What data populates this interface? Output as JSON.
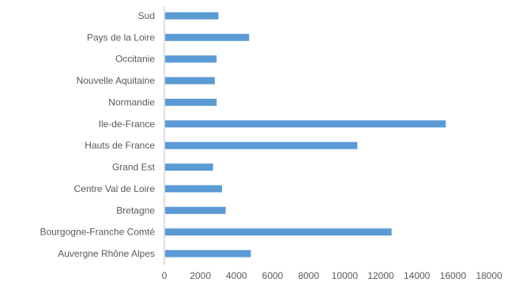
{
  "chart_data": {
    "type": "bar",
    "orientation": "horizontal",
    "title": "",
    "xlabel": "",
    "ylabel": "",
    "categories": [
      "Auvergne Rhône Alpes",
      "Bourgogne-Franche Comté",
      "Bretagne",
      "Centre Val de Loire",
      "Grand Est",
      "Hauts de France",
      "Ile-de-France",
      "Normandie",
      "Nouvelle Aquitaine",
      "Occitanie",
      "Pays de la Loire",
      "Sud"
    ],
    "values": [
      4800,
      12600,
      3400,
      3200,
      2700,
      10700,
      15600,
      2900,
      2800,
      2900,
      4700,
      3000
    ],
    "xlim": [
      0,
      18000
    ],
    "x_ticks": [
      0,
      2000,
      4000,
      6000,
      8000,
      10000,
      12000,
      14000,
      16000,
      18000
    ],
    "x_tick_labels": [
      "0",
      "2000",
      "4000",
      "6000",
      "8000",
      "10000",
      "12000",
      "14000",
      "16000",
      "18000"
    ],
    "bar_color": "#5b9bd5",
    "axis_color": "#bfbfbf",
    "grid": false,
    "legend": "none"
  }
}
